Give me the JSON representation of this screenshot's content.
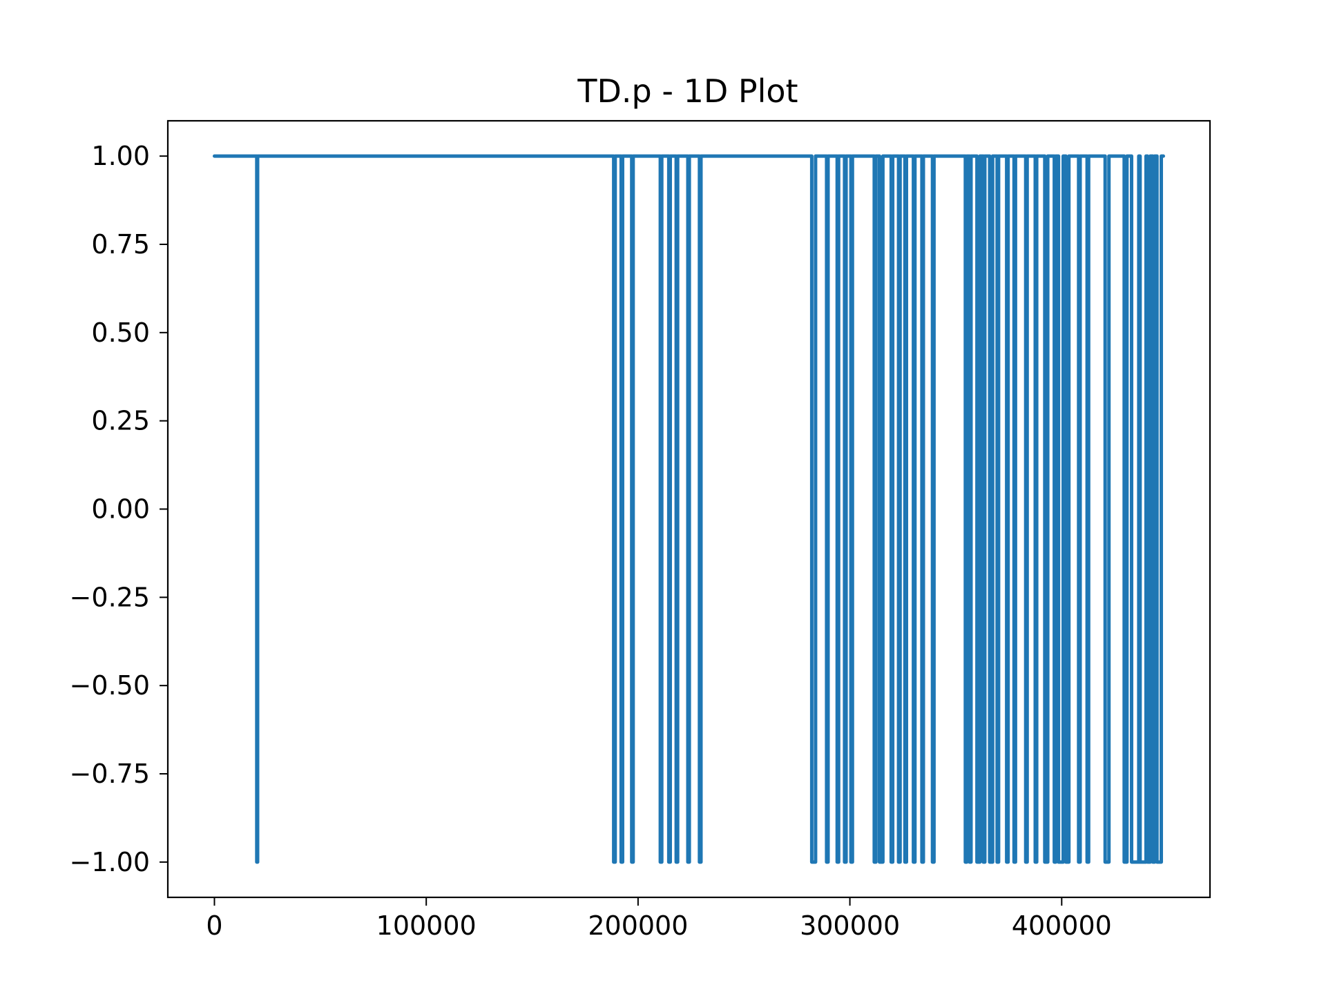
{
  "chart_data": {
    "type": "line",
    "title": "TD.p - 1D Plot",
    "xlabel": "",
    "ylabel": "",
    "xlim": [
      -22000,
      470000
    ],
    "ylim": [
      -1.1,
      1.1
    ],
    "grid": false,
    "x_ticks": [
      0,
      100000,
      200000,
      300000,
      400000
    ],
    "x_tick_labels": [
      "0",
      "100000",
      "200000",
      "300000",
      "400000"
    ],
    "y_ticks": [
      1.0,
      0.75,
      0.5,
      0.25,
      0.0,
      -0.25,
      -0.5,
      -0.75,
      -1.0
    ],
    "y_tick_labels": [
      "1.00",
      "0.75",
      "0.50",
      "0.25",
      "0.00",
      "−0.25",
      "−0.50",
      "−0.75",
      "−1.00"
    ],
    "series": [
      {
        "color": "#1f77b4",
        "baseline": 1.0,
        "x_start": 0,
        "x_end": 448000,
        "dip_value": -1.0,
        "dips": [
          [
            20000,
            20400
          ],
          [
            188500,
            189200
          ],
          [
            192000,
            192700
          ],
          [
            197000,
            197700
          ],
          [
            210500,
            211200
          ],
          [
            214500,
            215200
          ],
          [
            218000,
            218700
          ],
          [
            223500,
            224200
          ],
          [
            229000,
            229700
          ],
          [
            282000,
            283800
          ],
          [
            289000,
            289700
          ],
          [
            294000,
            294700
          ],
          [
            297500,
            298200
          ],
          [
            300500,
            301200
          ],
          [
            311500,
            312300
          ],
          [
            314000,
            315600
          ],
          [
            319500,
            320200
          ],
          [
            323000,
            323700
          ],
          [
            326000,
            326700
          ],
          [
            330000,
            330700
          ],
          [
            334000,
            334700
          ],
          [
            339000,
            339700
          ],
          [
            354500,
            355200
          ],
          [
            356500,
            357200
          ],
          [
            360000,
            361400
          ],
          [
            363000,
            363700
          ],
          [
            366000,
            367400
          ],
          [
            369500,
            370200
          ],
          [
            374000,
            374700
          ],
          [
            377500,
            378200
          ],
          [
            383000,
            383700
          ],
          [
            387500,
            388200
          ],
          [
            392000,
            393400
          ],
          [
            396500,
            397200
          ],
          [
            398500,
            400700
          ],
          [
            402000,
            403400
          ],
          [
            408000,
            408700
          ],
          [
            412000,
            412700
          ],
          [
            420500,
            422300
          ],
          [
            429500,
            430800
          ],
          [
            433000,
            436400
          ],
          [
            437000,
            439800
          ],
          [
            440500,
            441800
          ],
          [
            443000,
            443900
          ],
          [
            445000,
            447000
          ]
        ]
      }
    ]
  }
}
